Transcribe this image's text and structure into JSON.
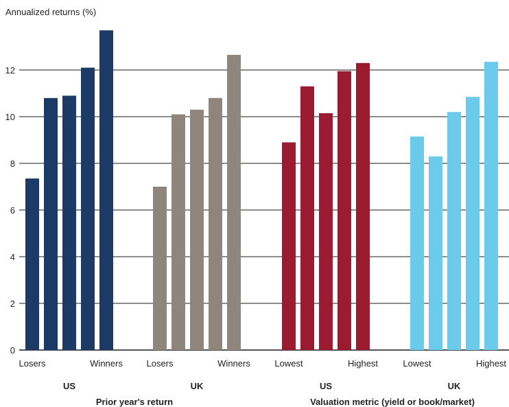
{
  "chart_data": {
    "type": "bar",
    "ylabel": "Annualized returns (%)",
    "ylim": [
      0,
      14
    ],
    "yticks": [
      0,
      2,
      4,
      6,
      8,
      10,
      12
    ],
    "grid": true,
    "groups": [
      {
        "name": "US",
        "section": "Prior year's return",
        "color": "#1b3a66",
        "values": [
          7.35,
          10.8,
          10.9,
          12.1,
          13.7
        ],
        "edge_labels": [
          "Losers",
          "Winners"
        ]
      },
      {
        "name": "UK",
        "section": "Prior year's return",
        "color": "#8e857d",
        "values": [
          7.0,
          10.1,
          10.3,
          10.8,
          12.65
        ],
        "edge_labels": [
          "Losers",
          "Winners"
        ]
      },
      {
        "name": "US",
        "section": "Valuation metric (yield or book/market)",
        "color": "#9b1c31",
        "values": [
          8.9,
          11.3,
          10.15,
          11.95,
          12.3
        ],
        "edge_labels": [
          "Lowest",
          "Highest"
        ]
      },
      {
        "name": "UK",
        "section": "Valuation metric (yield or book/market)",
        "color": "#6ccaea",
        "values": [
          9.15,
          8.3,
          10.2,
          10.85,
          12.35
        ],
        "edge_labels": [
          "Lowest",
          "Highest"
        ]
      }
    ],
    "sections": [
      "Prior year's return",
      "Valuation metric (yield or book/market)"
    ]
  }
}
